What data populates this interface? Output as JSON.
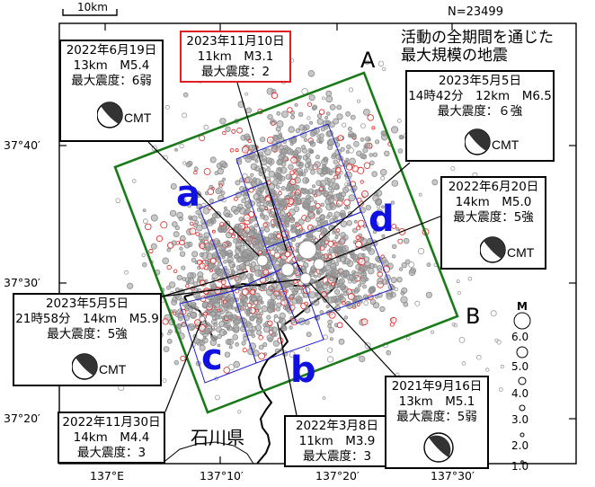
{
  "scale_label": "10km",
  "count_label": "N=23499",
  "legend_title": "活動の全期間を通じた\n最大規模の地震",
  "prefecture_label": "石川県",
  "corner_labels": {
    "A": "A",
    "B": "B"
  },
  "regions": {
    "a": "a",
    "b": "b",
    "c": "c",
    "d": "d"
  },
  "lat_labels": [
    "37°40′",
    "37°30′",
    "37°20′"
  ],
  "lon_labels": [
    "137°E",
    "137°10′",
    "137°20′",
    "137°30′"
  ],
  "magnitude_legend": {
    "title": "M",
    "values": [
      "6.0",
      "5.0",
      "4.0",
      "3.0",
      "2.0",
      "1.0"
    ]
  },
  "cmt_label": "CMT",
  "events": [
    {
      "id": "2022-06-19",
      "lines": [
        "2022年6月19日",
        "13km　M5.4",
        "最大震度：6弱"
      ],
      "cmt": true,
      "highlight": false
    },
    {
      "id": "2023-11-10",
      "lines": [
        "2023年11月10日",
        "11km　M3.1",
        "最大震度：2"
      ],
      "cmt": false,
      "highlight": true
    },
    {
      "id": "2023-05-05-main",
      "lines": [
        "2023年5月5日",
        "14時42分　12km　M6.5",
        "最大震度：６強"
      ],
      "cmt": true,
      "highlight": false
    },
    {
      "id": "2022-06-20",
      "lines": [
        "2022年6月20日",
        "14km　M5.0",
        "最大震度：5強"
      ],
      "cmt": true,
      "highlight": false
    },
    {
      "id": "2023-05-05-after",
      "lines": [
        "2023年5月5日",
        "21時58分　14km　M5.9",
        "最大震度：5強"
      ],
      "cmt": true,
      "highlight": false
    },
    {
      "id": "2022-11-30",
      "lines": [
        "2022年11月30日",
        "14km　M4.4",
        "最大震度：3"
      ],
      "cmt": false,
      "highlight": false
    },
    {
      "id": "2022-03-08",
      "lines": [
        "2022年3月8日",
        "11km　M3.9",
        "最大震度：3"
      ],
      "cmt": false,
      "highlight": false
    },
    {
      "id": "2021-09-16",
      "lines": [
        "2021年9月16日",
        "13km　M5.1",
        "最大震度：5弱"
      ],
      "cmt": true,
      "highlight": false
    }
  ],
  "colors": {
    "frame": "#1a7a1a",
    "subregion": "#2020d0",
    "recent": "#e02020",
    "older": "#8c8c8c",
    "highlight_box": "#e02020"
  }
}
